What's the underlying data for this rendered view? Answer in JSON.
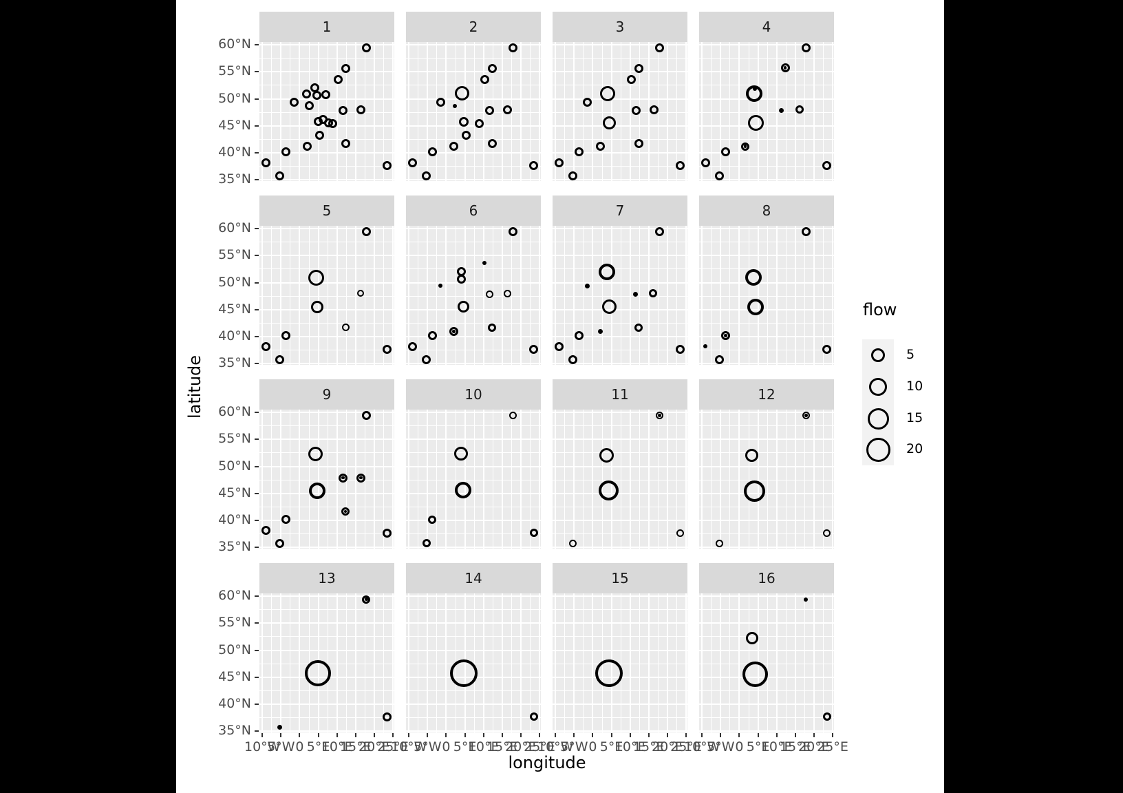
{
  "figure": {
    "background": "#000000",
    "plot_background": "#ffffff",
    "panel_background": "#EBEBEB",
    "strip_background": "#D9D9D9",
    "gridline_color": "#ffffff",
    "tick_text_color": "#4D4D4D",
    "point_color": "#000000"
  },
  "axis_titles": {
    "x": "longitude",
    "y": "latitude"
  },
  "legend": {
    "title": "flow",
    "entries": [
      {
        "label": "5",
        "diameter": 20
      },
      {
        "label": "10",
        "diameter": 26
      },
      {
        "label": "15",
        "diameter": 31
      },
      {
        "label": "20",
        "diameter": 35
      }
    ]
  },
  "chart_data": {
    "type": "scatter",
    "title": "",
    "xlabel": "longitude",
    "ylabel": "latitude",
    "size_variable": "flow",
    "size_breaks": [
      5,
      10,
      15,
      20
    ],
    "xlim": [
      -10.78,
      25.37
    ],
    "ylim": [
      34.8,
      60.5
    ],
    "x_ticks": {
      "values": [
        -10,
        -5,
        0,
        5,
        10,
        15,
        20,
        25
      ],
      "labels": [
        "10°W",
        "5°W",
        "0",
        "5°E",
        "10°E",
        "15°E",
        "20°E",
        "25°E"
      ]
    },
    "y_ticks": {
      "values": [
        60,
        55,
        50,
        45,
        40,
        35
      ],
      "labels": [
        "60°N",
        "55°N",
        "50°N",
        "45°N",
        "40°N",
        "35°N"
      ]
    },
    "x_minor": [
      -7.5,
      -2.5,
      2.5,
      7.5,
      12.5,
      17.5,
      22.5
    ],
    "y_minor": [
      57.5,
      52.5,
      47.5,
      42.5,
      37.5
    ],
    "grid": true,
    "legend_position": "right",
    "point_format": [
      "lon",
      "lat",
      "flow",
      "diameter_px",
      "style: o=open circle, f=filled dot, r=circle with center dot"
    ],
    "facets": [
      {
        "label": "1",
        "points": [
          [
            17.9,
            59.4,
            2.7,
            13,
            "o"
          ],
          [
            12.3,
            55.6,
            2.7,
            13,
            "o"
          ],
          [
            10.3,
            53.6,
            2.7,
            13,
            "o"
          ],
          [
            4.1,
            52.1,
            2.7,
            13,
            "o"
          ],
          [
            1.9,
            50.9,
            2.7,
            13,
            "o"
          ],
          [
            4.6,
            50.6,
            2.7,
            13,
            "o"
          ],
          [
            7.1,
            50.8,
            2.7,
            13,
            "o"
          ],
          [
            -1.5,
            49.4,
            2.7,
            13,
            "o"
          ],
          [
            2.6,
            48.7,
            2.7,
            13,
            "o"
          ],
          [
            11.6,
            47.9,
            2.7,
            13,
            "o"
          ],
          [
            16.4,
            48,
            2.7,
            13,
            "o"
          ],
          [
            6.2,
            46.2,
            2.7,
            13,
            "o"
          ],
          [
            4.9,
            45.8,
            2.7,
            13,
            "o"
          ],
          [
            7.7,
            45.5,
            2.7,
            13,
            "o"
          ],
          [
            8.9,
            45.4,
            2.7,
            13,
            "o"
          ],
          [
            5.4,
            43.2,
            2.7,
            13,
            "o"
          ],
          [
            12.3,
            41.7,
            2.7,
            13,
            "o"
          ],
          [
            2.1,
            41.2,
            2.7,
            13,
            "o"
          ],
          [
            -3.7,
            40.2,
            2.7,
            13,
            "o"
          ],
          [
            -9.1,
            38.2,
            2.7,
            13,
            "o"
          ],
          [
            -5.3,
            35.8,
            2.7,
            13,
            "o"
          ],
          [
            23.5,
            37.7,
            2.7,
            13,
            "o"
          ]
        ]
      },
      {
        "label": "2",
        "points": [
          [
            17.9,
            59.4,
            2.7,
            13,
            "o"
          ],
          [
            12.3,
            55.6,
            2.7,
            13,
            "o"
          ],
          [
            10.3,
            53.6,
            2.7,
            13,
            "o"
          ],
          [
            4.3,
            51,
            7.1,
            21,
            "o"
          ],
          [
            2.4,
            48.7,
            0.6,
            6,
            "f"
          ],
          [
            -1.5,
            49.4,
            2.7,
            13,
            "o"
          ],
          [
            11.6,
            47.9,
            2.7,
            13,
            "o"
          ],
          [
            16.4,
            48,
            2.7,
            13,
            "o"
          ],
          [
            4.8,
            45.7,
            3.1,
            14,
            "o"
          ],
          [
            8.9,
            45.4,
            2.7,
            13,
            "o"
          ],
          [
            5.4,
            43.2,
            2.7,
            13,
            "o"
          ],
          [
            12.3,
            41.7,
            2.7,
            13,
            "o"
          ],
          [
            2.1,
            41.2,
            2.7,
            13,
            "o"
          ],
          [
            -3.7,
            40.2,
            2.7,
            13,
            "o"
          ],
          [
            -9.1,
            38.2,
            2.7,
            13,
            "o"
          ],
          [
            -5.3,
            35.8,
            2.7,
            13,
            "o"
          ],
          [
            23.5,
            37.7,
            2.7,
            13,
            "o"
          ]
        ]
      },
      {
        "label": "3",
        "points": [
          [
            17.9,
            59.4,
            2.7,
            13,
            "o"
          ],
          [
            12.3,
            55.6,
            2.7,
            13,
            "o"
          ],
          [
            10.3,
            53.6,
            2.7,
            13,
            "o"
          ],
          [
            4,
            51,
            7.8,
            22,
            "o"
          ],
          [
            -1.5,
            49.4,
            2.7,
            13,
            "o"
          ],
          [
            11.6,
            47.9,
            2.7,
            13,
            "o"
          ],
          [
            16.4,
            48,
            2.7,
            13,
            "o"
          ],
          [
            4.5,
            45.6,
            5.8,
            19,
            "o"
          ],
          [
            12.3,
            41.7,
            2.7,
            13,
            "o"
          ],
          [
            2.1,
            41.2,
            2.7,
            13,
            "o"
          ],
          [
            -3.7,
            40.2,
            2.7,
            13,
            "o"
          ],
          [
            -9.1,
            38.2,
            2.7,
            13,
            "o"
          ],
          [
            -5.3,
            35.8,
            2.7,
            13,
            "o"
          ],
          [
            23.5,
            37.7,
            2.7,
            13,
            "o"
          ]
        ]
      },
      {
        "label": "4",
        "points": [
          [
            17.9,
            59.4,
            2.7,
            13,
            "o"
          ],
          [
            12.3,
            55.7,
            2.7,
            13,
            "r"
          ],
          [
            4,
            50.9,
            9.2,
            24,
            "o"
          ],
          [
            4.2,
            51.8,
            0.6,
            6,
            "f"
          ],
          [
            11.2,
            47.9,
            0.8,
            7,
            "f"
          ],
          [
            16.2,
            48,
            2.3,
            12,
            "o"
          ],
          [
            4.5,
            45.5,
            8.5,
            23,
            "o"
          ],
          [
            1.6,
            41.2,
            2.3,
            12,
            "r"
          ],
          [
            -3.7,
            40.2,
            2.7,
            13,
            "o"
          ],
          [
            -9.1,
            38.2,
            2.7,
            13,
            "o"
          ],
          [
            -5.3,
            35.8,
            2.7,
            13,
            "o"
          ],
          [
            23.5,
            37.7,
            2.7,
            13,
            "o"
          ]
        ]
      },
      {
        "label": "5",
        "points": [
          [
            17.9,
            59.4,
            2.7,
            13,
            "o"
          ],
          [
            4.4,
            50.9,
            8.5,
            23,
            "o"
          ],
          [
            16.4,
            48,
            1.6,
            10,
            "o"
          ],
          [
            4.7,
            45.5,
            5.2,
            18,
            "o"
          ],
          [
            12.3,
            41.7,
            1.9,
            11,
            "o"
          ],
          [
            -3.7,
            40.2,
            2.7,
            13,
            "o"
          ],
          [
            -9.1,
            38.2,
            2.7,
            13,
            "o"
          ],
          [
            -5.3,
            35.8,
            2.7,
            13,
            "o"
          ],
          [
            23.5,
            37.7,
            2.7,
            13,
            "o"
          ]
        ]
      },
      {
        "label": "6",
        "points": [
          [
            17.9,
            59.4,
            2.7,
            13,
            "o"
          ],
          [
            10.3,
            53.6,
            0.6,
            6,
            "f"
          ],
          [
            4.1,
            52.1,
            2.7,
            13,
            "o"
          ],
          [
            4.1,
            50.7,
            2.7,
            13,
            "o"
          ],
          [
            -1.5,
            49.4,
            0.6,
            6,
            "f"
          ],
          [
            11.6,
            47.9,
            1.9,
            11,
            "o"
          ],
          [
            16.4,
            48,
            1.9,
            11,
            "o"
          ],
          [
            4.7,
            45.5,
            4.6,
            17,
            "o"
          ],
          [
            12.3,
            41.7,
            2.3,
            12,
            "o"
          ],
          [
            2,
            41,
            2.7,
            13,
            "r"
          ],
          [
            -3.7,
            40.2,
            2.7,
            13,
            "o"
          ],
          [
            -9.1,
            38.2,
            2.7,
            13,
            "o"
          ],
          [
            -5.3,
            35.8,
            2.7,
            13,
            "o"
          ],
          [
            23.5,
            37.7,
            2.7,
            13,
            "o"
          ]
        ]
      },
      {
        "label": "7",
        "points": [
          [
            17.9,
            59.4,
            2.7,
            13,
            "o"
          ],
          [
            3.7,
            52,
            9.2,
            24,
            "o"
          ],
          [
            -1.5,
            49.4,
            0.8,
            7,
            "f"
          ],
          [
            11.4,
            47.8,
            0.8,
            7,
            "f"
          ],
          [
            16.2,
            48,
            2.3,
            12,
            "o"
          ],
          [
            4.4,
            45.5,
            7.1,
            21,
            "o"
          ],
          [
            12.3,
            41.7,
            2.3,
            12,
            "o"
          ],
          [
            2.1,
            41,
            0.8,
            7,
            "f"
          ],
          [
            -3.7,
            40.2,
            2.7,
            13,
            "o"
          ],
          [
            -9.1,
            38.2,
            2.7,
            13,
            "o"
          ],
          [
            -5.3,
            35.8,
            2.7,
            13,
            "o"
          ],
          [
            23.5,
            37.7,
            2.7,
            13,
            "o"
          ]
        ]
      },
      {
        "label": "8",
        "points": [
          [
            17.9,
            59.4,
            2.7,
            13,
            "o"
          ],
          [
            3.7,
            51,
            9.2,
            24,
            "o"
          ],
          [
            4.4,
            45.5,
            9.2,
            24,
            "o"
          ],
          [
            -3.7,
            40.2,
            2.7,
            13,
            "r"
          ],
          [
            -9.1,
            38.2,
            0.6,
            6,
            "f"
          ],
          [
            -5.3,
            35.8,
            2.7,
            13,
            "o"
          ],
          [
            23.5,
            37.7,
            2.7,
            13,
            "o"
          ]
        ]
      },
      {
        "label": "9",
        "points": [
          [
            17.9,
            59.4,
            2.7,
            13,
            "o"
          ],
          [
            4.2,
            52.3,
            7.1,
            21,
            "o"
          ],
          [
            11.6,
            47.9,
            2.7,
            13,
            "r"
          ],
          [
            16.4,
            47.9,
            2.7,
            13,
            "r"
          ],
          [
            4.8,
            45.5,
            9.2,
            24,
            "o"
          ],
          [
            12.3,
            41.7,
            2.3,
            12,
            "r"
          ],
          [
            -3.7,
            40.2,
            2.7,
            13,
            "o"
          ],
          [
            -9.1,
            38.2,
            2.7,
            13,
            "o"
          ],
          [
            -5.3,
            35.8,
            2.7,
            13,
            "o"
          ],
          [
            23.5,
            37.7,
            2.7,
            13,
            "o"
          ]
        ]
      },
      {
        "label": "10",
        "points": [
          [
            17.9,
            59.4,
            1.9,
            11,
            "o"
          ],
          [
            4,
            52.3,
            6.4,
            20,
            "o"
          ],
          [
            4.6,
            45.6,
            9.2,
            24,
            "o"
          ],
          [
            -3.7,
            40.2,
            2.3,
            12,
            "o"
          ],
          [
            -5.3,
            35.8,
            2.3,
            12,
            "o"
          ],
          [
            23.5,
            37.7,
            2.3,
            12,
            "o"
          ]
        ]
      },
      {
        "label": "11",
        "points": [
          [
            17.9,
            59.4,
            1.9,
            11,
            "r"
          ],
          [
            3.7,
            52.1,
            7.1,
            21,
            "o"
          ],
          [
            4.3,
            45.6,
            13.5,
            29,
            "o"
          ],
          [
            -5.3,
            35.8,
            1.9,
            11,
            "o"
          ],
          [
            23.5,
            37.7,
            1.9,
            11,
            "o"
          ]
        ]
      },
      {
        "label": "12",
        "points": [
          [
            17.9,
            59.4,
            1.9,
            11,
            "r"
          ],
          [
            3.4,
            52.1,
            5.8,
            19,
            "o"
          ],
          [
            4.1,
            45.4,
            15.4,
            31,
            "o"
          ],
          [
            -5.3,
            35.8,
            1.9,
            11,
            "o"
          ],
          [
            23.5,
            37.7,
            1.9,
            11,
            "o"
          ]
        ]
      },
      {
        "label": "13",
        "points": [
          [
            17.9,
            59.4,
            2.3,
            12,
            "r"
          ],
          [
            4.9,
            45.7,
            23.1,
            38,
            "o"
          ],
          [
            -5.3,
            35.8,
            0.8,
            7,
            "f"
          ],
          [
            23.5,
            37.7,
            2.7,
            13,
            "o"
          ]
        ]
      },
      {
        "label": "14",
        "points": [
          [
            4.7,
            45.7,
            25.6,
            40,
            "o"
          ],
          [
            23.5,
            37.7,
            2.3,
            12,
            "o"
          ]
        ]
      },
      {
        "label": "15",
        "points": [
          [
            4.3,
            45.7,
            25.6,
            40,
            "o"
          ]
        ]
      },
      {
        "label": "16",
        "points": [
          [
            17.9,
            59.4,
            0.6,
            6,
            "f"
          ],
          [
            3.5,
            52.2,
            5.2,
            18,
            "o"
          ],
          [
            4.2,
            45.6,
            21.9,
            37,
            "o"
          ],
          [
            23.5,
            37.7,
            2.3,
            12,
            "o"
          ]
        ]
      }
    ]
  }
}
